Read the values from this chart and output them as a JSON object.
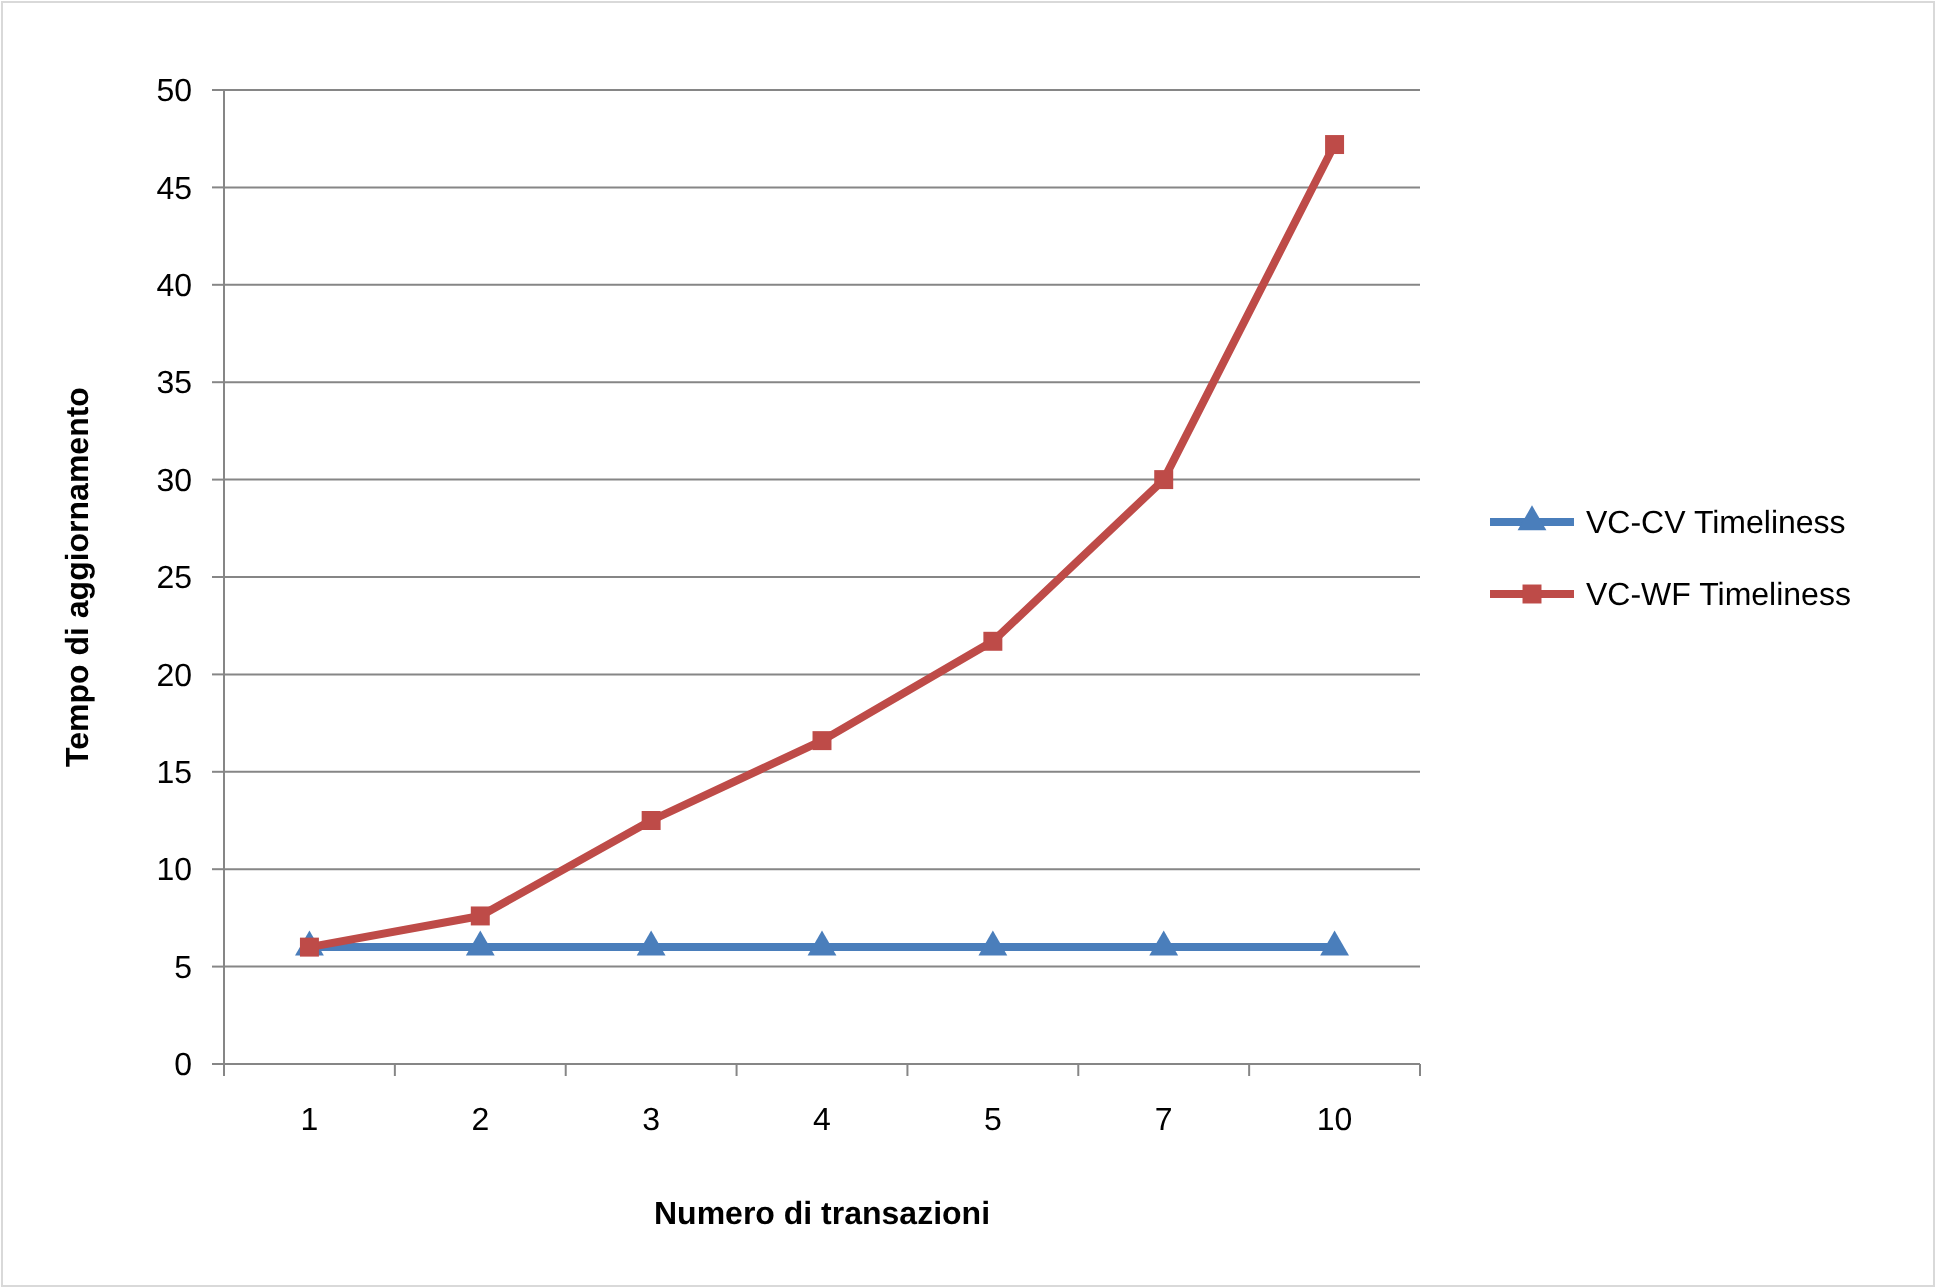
{
  "chart_data": {
    "type": "line",
    "xlabel": "Numero di transazioni",
    "ylabel": "Tempo di aggiornamento",
    "categories": [
      "1",
      "2",
      "3",
      "4",
      "5",
      "7",
      "10"
    ],
    "series": [
      {
        "name": "VC-CV Timeliness",
        "color": "#4a7ebb",
        "marker": "triangle",
        "values": [
          6,
          6,
          6,
          6,
          6,
          6,
          6
        ]
      },
      {
        "name": "VC-WF Timeliness",
        "color": "#be4b48",
        "marker": "square",
        "values": [
          6.0,
          7.6,
          12.5,
          16.6,
          21.7,
          30,
          47.2
        ]
      }
    ],
    "ylim": [
      0,
      50
    ],
    "yticks": [
      0,
      5,
      10,
      15,
      20,
      25,
      30,
      35,
      40,
      45,
      50
    ],
    "grid": "y",
    "legend": "right",
    "line_style": "solid"
  }
}
